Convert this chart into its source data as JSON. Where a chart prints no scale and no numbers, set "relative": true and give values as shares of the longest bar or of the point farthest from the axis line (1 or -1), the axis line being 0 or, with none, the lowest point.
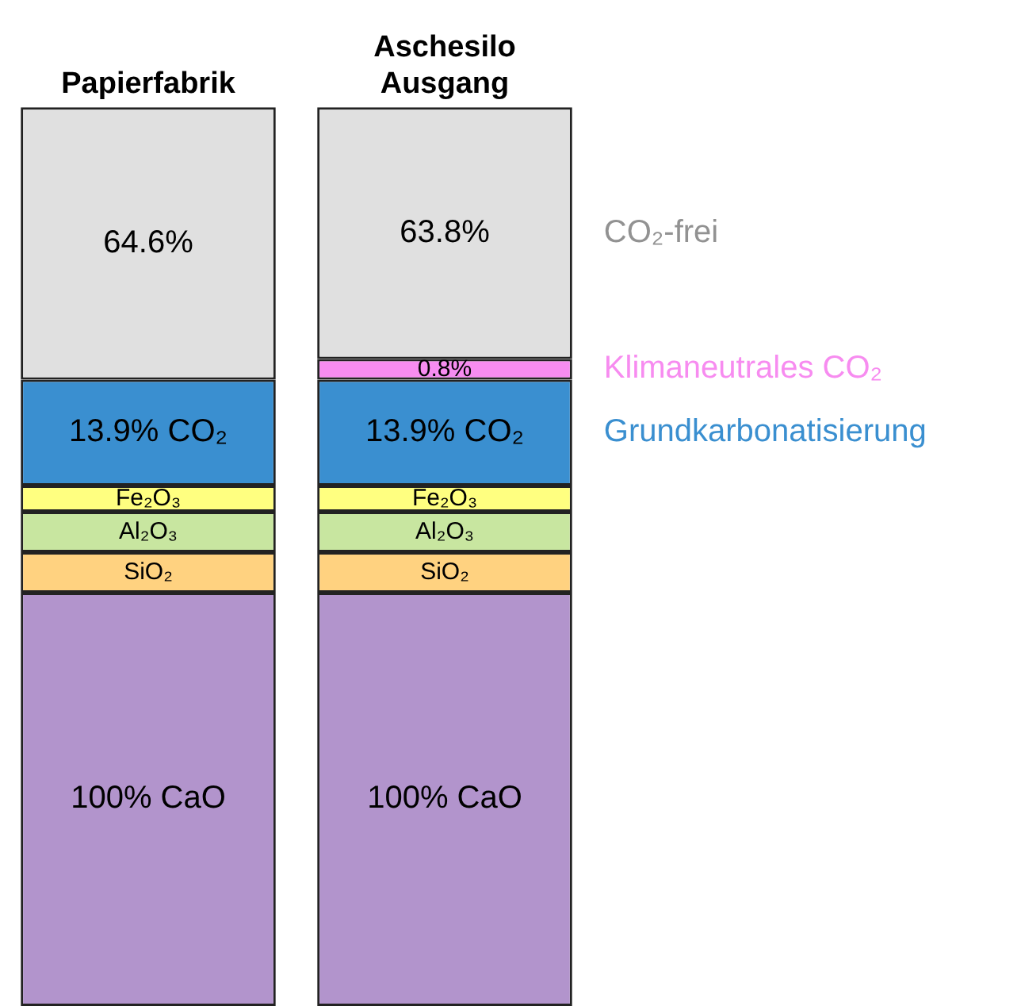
{
  "chart_data": {
    "type": "bar",
    "stacked": true,
    "relative": true,
    "legend": false,
    "grid": false,
    "tick_labels": "x",
    "categories": [
      "Papierfabrik",
      "Aschesilo Ausgang"
    ],
    "series": [
      {
        "color": "#b294cc",
        "values": [
          0.46,
          0.46
        ]
      },
      {
        "color": "#ffd280",
        "values": [
          0.045,
          0.045
        ]
      },
      {
        "color": "#c8e6a0",
        "values": [
          0.045,
          0.045
        ]
      },
      {
        "color": "#ffff80",
        "values": [
          0.029,
          0.029
        ]
      },
      {
        "name": "Grundkarbonatisierung",
        "color": "#3a8fd0",
        "values": [
          0.118,
          0.118
        ]
      },
      {
        "name": "Klimaneutrales CO₂",
        "color": "#f78cf0",
        "values": [
          0,
          0.023
        ]
      },
      {
        "name": "CO₂-frei",
        "color": "#e0e0e0",
        "values": [
          0.303,
          0.28
        ]
      }
    ],
    "annotations": [
      "100% CaO",
      "SiO₂",
      "Al₂O₃",
      "Fe₂O₃",
      "13.9% CO₂",
      "64.6%",
      "100% CaO",
      "SiO₂",
      "Al₂O₃",
      "Fe₂O₃",
      "13.9% CO₂",
      "0.8%",
      "63.8%"
    ]
  }
}
